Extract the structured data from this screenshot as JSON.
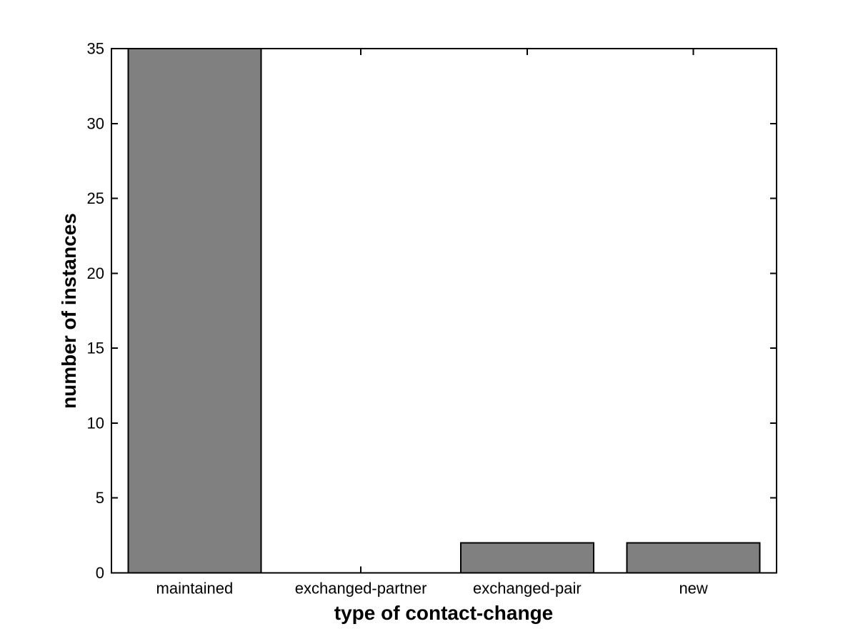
{
  "chart_data": {
    "type": "bar",
    "categories": [
      "maintained",
      "exchanged-partner",
      "exchanged-pair",
      "new"
    ],
    "values": [
      35,
      0,
      2,
      2
    ],
    "xlabel": "type of contact-change",
    "ylabel": "number of instances",
    "ylim": [
      0,
      35
    ],
    "yticks": [
      0,
      5,
      10,
      15,
      20,
      25,
      30,
      35
    ],
    "grid": false,
    "legend": "none",
    "bar_color": "#808080",
    "bar_edge_color": "#000000",
    "axis_color": "#000000",
    "text_color": "#000000",
    "background": "#ffffff"
  }
}
